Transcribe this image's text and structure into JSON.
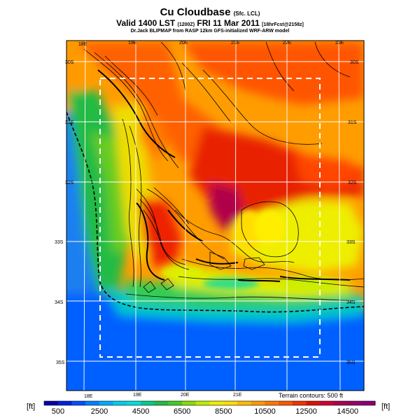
{
  "header": {
    "title": "Cu Cloudbase",
    "title_suffix": "(Sfc. LCL)",
    "valid_line": "Valid 1400 LST",
    "valid_zulu": "(1200Z)",
    "valid_date": "FRI 11 Mar 2011",
    "forecast_tag": "[18hrFcst@2158z]",
    "credit": "Dr.Jack BLIPMAP from RASP 12km GFS-initialized WRF-ARW model"
  },
  "map": {
    "lon_labels_top": [
      "18E",
      "19E",
      "20E",
      "21E",
      "22E",
      "23E"
    ],
    "lon_labels_bottom": [
      "18E",
      "19E",
      "20E",
      "21E"
    ],
    "lat_labels_left": [
      "30S",
      "31S",
      "32S",
      "33S",
      "34S",
      "35S"
    ],
    "lat_labels_right": [
      "30S",
      "31S",
      "32S",
      "33S",
      "34S",
      "35S"
    ],
    "terrain_note": "Terrain contours: 500 ft"
  },
  "legend": {
    "unit_left": "[ft]",
    "unit_right": "[ft]",
    "tick_labels": [
      "500",
      "2500",
      "4500",
      "6500",
      "8500",
      "10500",
      "12500",
      "14500"
    ],
    "colors": [
      "#0a00a8",
      "#0020e0",
      "#0050ff",
      "#0080ff",
      "#00aaff",
      "#00ccee",
      "#00dddd",
      "#00cc88",
      "#22bb44",
      "#44cc22",
      "#88dd00",
      "#bbee00",
      "#eeee00",
      "#ffdd00",
      "#ffbb00",
      "#ff9900",
      "#ff7700",
      "#ff5500",
      "#ee3300",
      "#dd1100",
      "#cc0033",
      "#aa0055",
      "#990066",
      "#880077"
    ]
  }
}
